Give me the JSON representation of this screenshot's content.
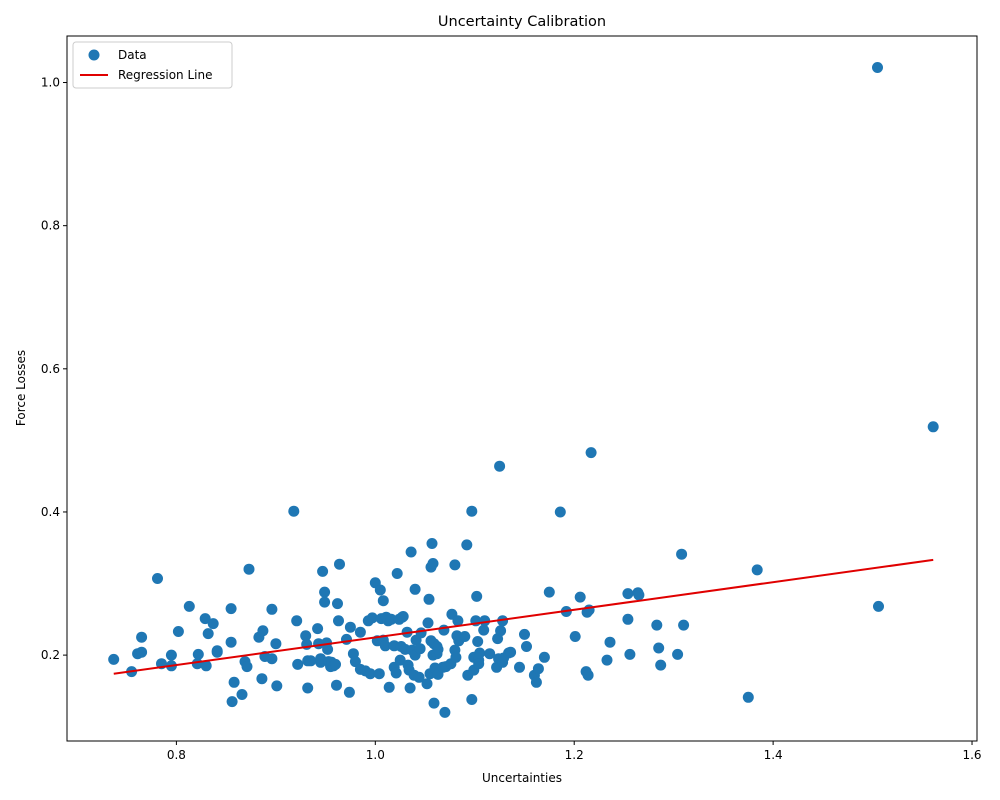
{
  "chart_data": {
    "type": "scatter",
    "title": "Uncertainty Calibration",
    "xlabel": "Uncertainties",
    "ylabel": "Force Losses",
    "xlim": [
      0.69,
      1.605
    ],
    "ylim": [
      0.08,
      1.065
    ],
    "xticks": [
      "0.8",
      "1.0",
      "1.2",
      "1.4",
      "1.6"
    ],
    "yticks": [
      "0.2",
      "0.4",
      "0.6",
      "0.8",
      "1.0"
    ],
    "grid": false,
    "legend_position": "top-left",
    "legend": [
      "Data",
      "Regression Line"
    ],
    "colors": {
      "points": "#1f77b4",
      "regression": "#e00000"
    },
    "regression_line": {
      "x": [
        0.737,
        1.561
      ],
      "y": [
        0.174,
        0.333
      ]
    },
    "series": [
      {
        "name": "Data",
        "points": [
          [
            0.737,
            0.194
          ],
          [
            0.755,
            0.177
          ],
          [
            0.761,
            0.202
          ],
          [
            0.765,
            0.204
          ],
          [
            0.765,
            0.225
          ],
          [
            0.781,
            0.307
          ],
          [
            0.785,
            0.188
          ],
          [
            0.795,
            0.185
          ],
          [
            0.795,
            0.2
          ],
          [
            0.802,
            0.233
          ],
          [
            0.813,
            0.268
          ],
          [
            0.821,
            0.188
          ],
          [
            0.822,
            0.201
          ],
          [
            0.829,
            0.251
          ],
          [
            0.83,
            0.185
          ],
          [
            0.832,
            0.23
          ],
          [
            0.837,
            0.244
          ],
          [
            0.841,
            0.206
          ],
          [
            0.841,
            0.204
          ],
          [
            0.855,
            0.265
          ],
          [
            0.855,
            0.218
          ],
          [
            0.856,
            0.135
          ],
          [
            0.858,
            0.162
          ],
          [
            0.866,
            0.145
          ],
          [
            0.869,
            0.191
          ],
          [
            0.871,
            0.184
          ],
          [
            0.873,
            0.32
          ],
          [
            0.883,
            0.225
          ],
          [
            0.886,
            0.167
          ],
          [
            0.887,
            0.234
          ],
          [
            0.889,
            0.198
          ],
          [
            0.896,
            0.264
          ],
          [
            0.896,
            0.195
          ],
          [
            0.9,
            0.216
          ],
          [
            0.901,
            0.157
          ],
          [
            0.918,
            0.401
          ],
          [
            0.921,
            0.248
          ],
          [
            0.922,
            0.187
          ],
          [
            0.93,
            0.227
          ],
          [
            0.931,
            0.215
          ],
          [
            0.932,
            0.192
          ],
          [
            0.932,
            0.154
          ],
          [
            0.935,
            0.192
          ],
          [
            0.942,
            0.237
          ],
          [
            0.943,
            0.216
          ],
          [
            0.945,
            0.19
          ],
          [
            0.945,
            0.195
          ],
          [
            0.947,
            0.317
          ],
          [
            0.949,
            0.274
          ],
          [
            0.949,
            0.288
          ],
          [
            0.951,
            0.217
          ],
          [
            0.952,
            0.208
          ],
          [
            0.953,
            0.191
          ],
          [
            0.955,
            0.184
          ],
          [
            0.956,
            0.19
          ],
          [
            0.958,
            0.185
          ],
          [
            0.96,
            0.187
          ],
          [
            0.961,
            0.158
          ],
          [
            0.962,
            0.272
          ],
          [
            0.963,
            0.248
          ],
          [
            0.964,
            0.327
          ],
          [
            0.971,
            0.222
          ],
          [
            0.974,
            0.148
          ],
          [
            0.975,
            0.239
          ],
          [
            0.978,
            0.202
          ],
          [
            0.98,
            0.191
          ],
          [
            0.985,
            0.232
          ],
          [
            0.985,
            0.18
          ],
          [
            0.99,
            0.178
          ],
          [
            0.993,
            0.248
          ],
          [
            0.995,
            0.174
          ],
          [
            0.997,
            0.252
          ],
          [
            1.0,
            0.301
          ],
          [
            1.002,
            0.22
          ],
          [
            1.004,
            0.174
          ],
          [
            1.005,
            0.291
          ],
          [
            1.006,
            0.251
          ],
          [
            1.008,
            0.276
          ],
          [
            1.008,
            0.221
          ],
          [
            1.01,
            0.213
          ],
          [
            1.011,
            0.253
          ],
          [
            1.013,
            0.248
          ],
          [
            1.014,
            0.155
          ],
          [
            1.016,
            0.25
          ],
          [
            1.019,
            0.213
          ],
          [
            1.019,
            0.183
          ],
          [
            1.021,
            0.175
          ],
          [
            1.022,
            0.314
          ],
          [
            1.024,
            0.25
          ],
          [
            1.025,
            0.193
          ],
          [
            1.026,
            0.212
          ],
          [
            1.027,
            0.253
          ],
          [
            1.028,
            0.254
          ],
          [
            1.03,
            0.208
          ],
          [
            1.032,
            0.232
          ],
          [
            1.033,
            0.186
          ],
          [
            1.034,
            0.179
          ],
          [
            1.035,
            0.154
          ],
          [
            1.036,
            0.344
          ],
          [
            1.037,
            0.207
          ],
          [
            1.039,
            0.172
          ],
          [
            1.04,
            0.2
          ],
          [
            1.04,
            0.292
          ],
          [
            1.041,
            0.221
          ],
          [
            1.044,
            0.169
          ],
          [
            1.045,
            0.209
          ],
          [
            1.046,
            0.231
          ],
          [
            1.052,
            0.16
          ],
          [
            1.053,
            0.245
          ],
          [
            1.054,
            0.278
          ],
          [
            1.055,
            0.174
          ],
          [
            1.056,
            0.22
          ],
          [
            1.056,
            0.323
          ],
          [
            1.057,
            0.356
          ],
          [
            1.058,
            0.2
          ],
          [
            1.058,
            0.328
          ],
          [
            1.059,
            0.133
          ],
          [
            1.059,
            0.216
          ],
          [
            1.06,
            0.182
          ],
          [
            1.062,
            0.202
          ],
          [
            1.062,
            0.212
          ],
          [
            1.063,
            0.173
          ],
          [
            1.063,
            0.208
          ],
          [
            1.068,
            0.183
          ],
          [
            1.069,
            0.235
          ],
          [
            1.07,
            0.12
          ],
          [
            1.071,
            0.184
          ],
          [
            1.076,
            0.188
          ],
          [
            1.077,
            0.257
          ],
          [
            1.08,
            0.207
          ],
          [
            1.08,
            0.326
          ],
          [
            1.081,
            0.197
          ],
          [
            1.082,
            0.227
          ],
          [
            1.083,
            0.248
          ],
          [
            1.084,
            0.22
          ],
          [
            1.09,
            0.226
          ],
          [
            1.092,
            0.354
          ],
          [
            1.093,
            0.172
          ],
          [
            1.097,
            0.138
          ],
          [
            1.097,
            0.401
          ],
          [
            1.099,
            0.179
          ],
          [
            1.099,
            0.197
          ],
          [
            1.101,
            0.248
          ],
          [
            1.102,
            0.282
          ],
          [
            1.103,
            0.219
          ],
          [
            1.104,
            0.193
          ],
          [
            1.104,
            0.188
          ],
          [
            1.105,
            0.203
          ],
          [
            1.109,
            0.235
          ],
          [
            1.11,
            0.248
          ],
          [
            1.115,
            0.202
          ],
          [
            1.122,
            0.183
          ],
          [
            1.123,
            0.223
          ],
          [
            1.124,
            0.195
          ],
          [
            1.125,
            0.464
          ],
          [
            1.126,
            0.234
          ],
          [
            1.128,
            0.19
          ],
          [
            1.128,
            0.248
          ],
          [
            1.129,
            0.196
          ],
          [
            1.134,
            0.203
          ],
          [
            1.136,
            0.204
          ],
          [
            1.145,
            0.183
          ],
          [
            1.15,
            0.229
          ],
          [
            1.152,
            0.212
          ],
          [
            1.16,
            0.172
          ],
          [
            1.162,
            0.162
          ],
          [
            1.164,
            0.181
          ],
          [
            1.17,
            0.197
          ],
          [
            1.175,
            0.288
          ],
          [
            1.186,
            0.4
          ],
          [
            1.192,
            0.261
          ],
          [
            1.201,
            0.226
          ],
          [
            1.206,
            0.281
          ],
          [
            1.212,
            0.177
          ],
          [
            1.213,
            0.26
          ],
          [
            1.214,
            0.172
          ],
          [
            1.215,
            0.263
          ],
          [
            1.217,
            0.483
          ],
          [
            1.233,
            0.193
          ],
          [
            1.236,
            0.218
          ],
          [
            1.254,
            0.286
          ],
          [
            1.254,
            0.25
          ],
          [
            1.256,
            0.201
          ],
          [
            1.264,
            0.287
          ],
          [
            1.265,
            0.284
          ],
          [
            1.283,
            0.242
          ],
          [
            1.285,
            0.21
          ],
          [
            1.287,
            0.186
          ],
          [
            1.304,
            0.201
          ],
          [
            1.308,
            0.341
          ],
          [
            1.31,
            0.242
          ],
          [
            1.375,
            0.141
          ],
          [
            1.384,
            0.319
          ],
          [
            1.505,
            1.021
          ],
          [
            1.506,
            0.268
          ],
          [
            1.561,
            0.519
          ]
        ]
      }
    ]
  }
}
